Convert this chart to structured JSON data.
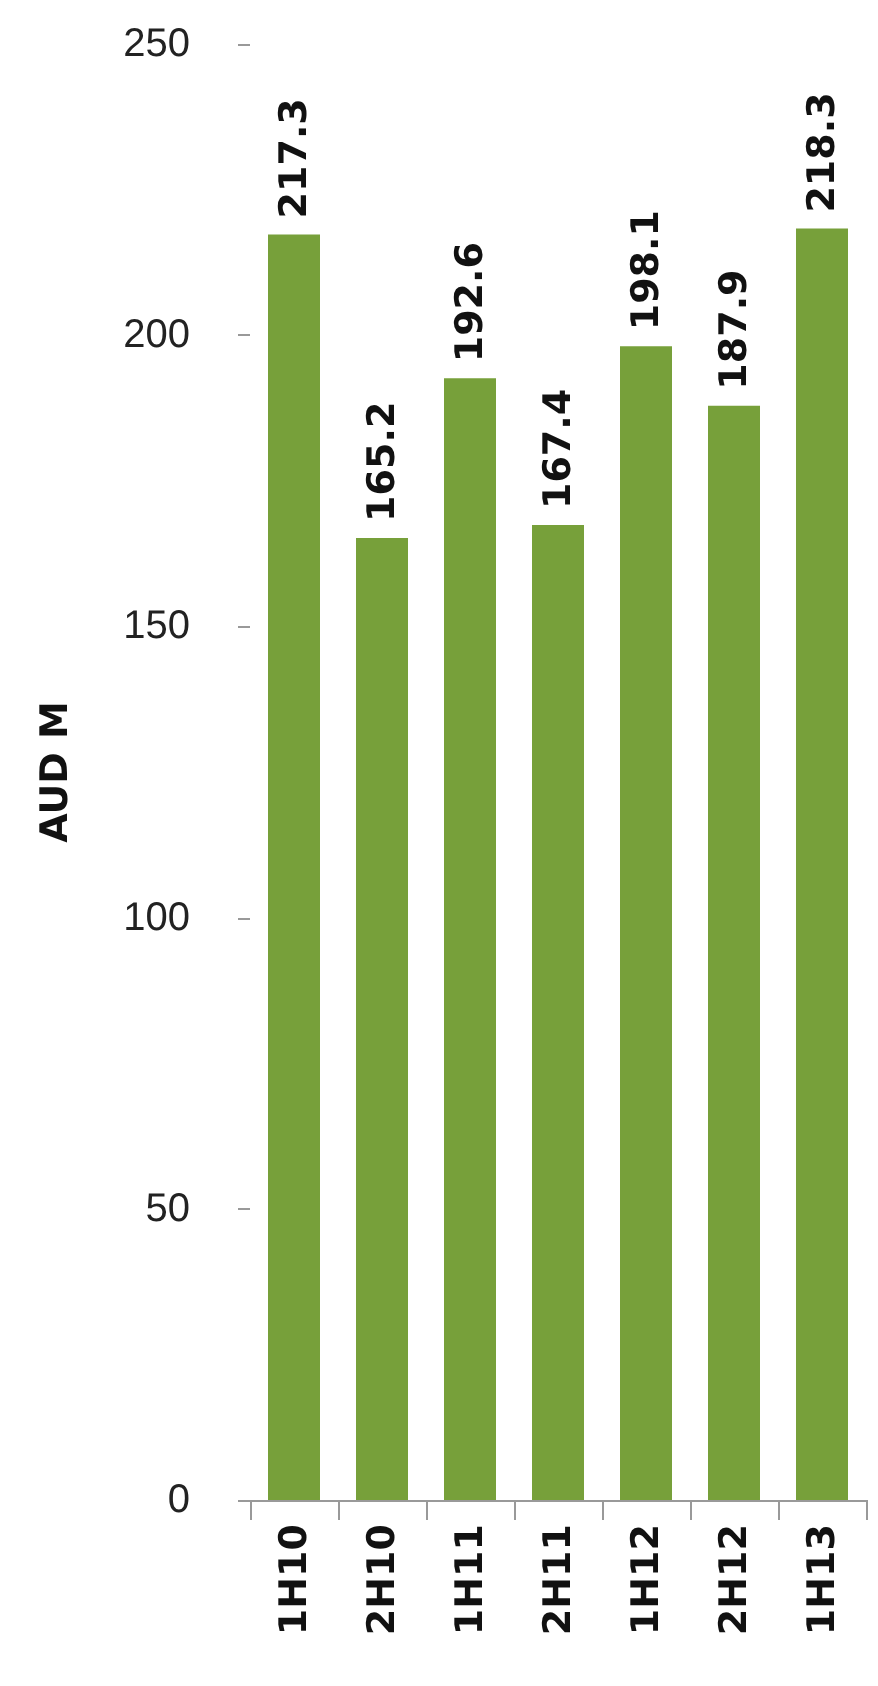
{
  "chart_data": {
    "type": "bar",
    "ylabel": "AUD M",
    "categories": [
      "1H10",
      "2H10",
      "1H11",
      "2H11",
      "1H12",
      "2H12",
      "1H13"
    ],
    "values": [
      217.3,
      165.2,
      192.6,
      167.4,
      198.1,
      187.9,
      218.3
    ],
    "color": "#77a03a",
    "ylim": [
      0,
      250
    ],
    "yticks": [
      0,
      50,
      100,
      150,
      200,
      250
    ],
    "grid": false,
    "data_labels": true
  }
}
